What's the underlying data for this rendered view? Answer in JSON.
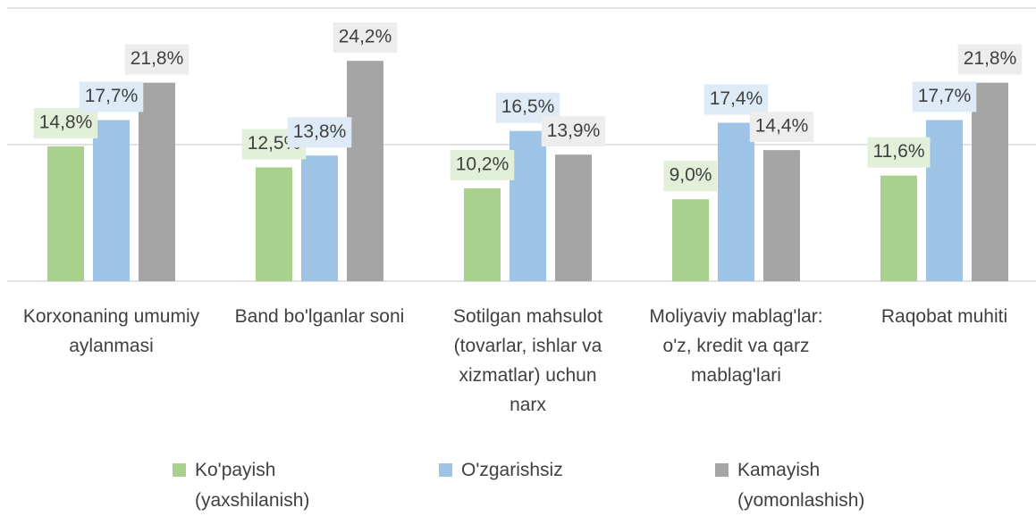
{
  "chart_data": {
    "type": "bar",
    "categories": [
      "Korxonaning umumiy aylanmasi",
      "Band bo'lganlar soni",
      "Sotilgan mahsulot (tovarlar, ishlar va xizmatlar) uchun narx",
      "Moliyaviy mablag'lar: o'z, kredit va qarz mablag'lari",
      "Raqobat muhiti"
    ],
    "series": [
      {
        "name": "Ko'payish (yaxshilanish)",
        "color": "#a9d18e",
        "label_bg": "#e2efd9",
        "values": [
          14.8,
          12.5,
          10.2,
          9.0,
          11.6
        ],
        "value_labels": [
          "14,8%",
          "12,5%",
          "10,2%",
          "9,0%",
          "11,6%"
        ]
      },
      {
        "name": "O'zgarishsiz",
        "color": "#9dc3e6",
        "label_bg": "#deebf7",
        "values": [
          17.7,
          13.8,
          16.5,
          17.4,
          17.7
        ],
        "value_labels": [
          "17,7%",
          "13,8%",
          "16,5%",
          "17,4%",
          "17,7%"
        ]
      },
      {
        "name": "Kamayish (yomonlashish)",
        "color": "#a5a5a5",
        "label_bg": "#ededed",
        "values": [
          21.8,
          24.2,
          13.9,
          14.4,
          21.8
        ],
        "value_labels": [
          "21,8%",
          "24,2%",
          "13,9%",
          "14,4%",
          "21,8%"
        ]
      }
    ],
    "ylim": [
      0,
      30
    ],
    "yticks": [
      0,
      15,
      30
    ],
    "grid": true,
    "legend": "bottom"
  }
}
